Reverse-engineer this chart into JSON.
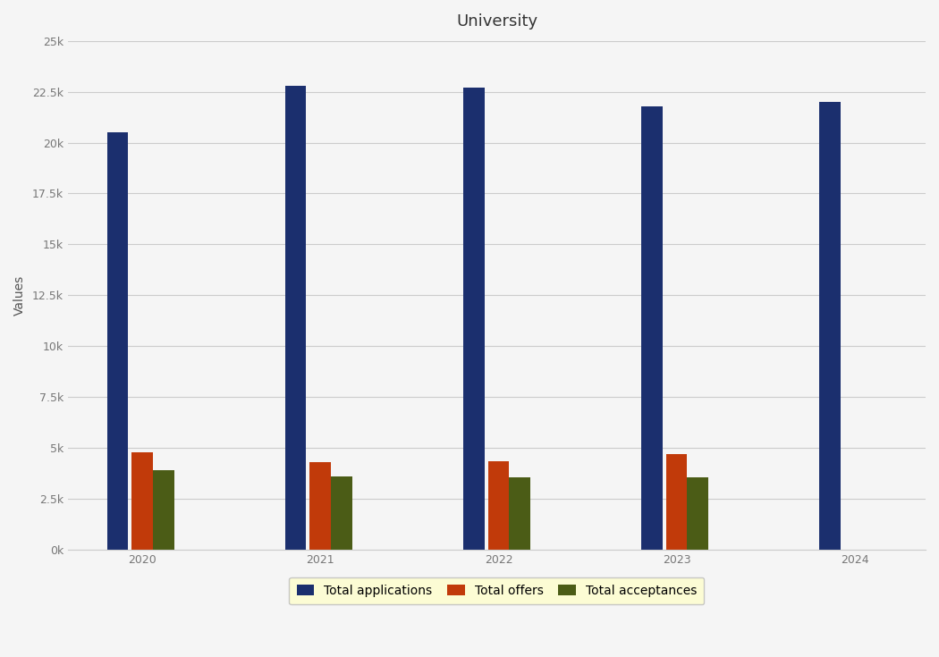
{
  "title": "University",
  "ylabel": "Values",
  "years": [
    "2020",
    "2021",
    "2022",
    "2023",
    "2024"
  ],
  "total_applications": [
    20500,
    22800,
    22700,
    21800,
    22000
  ],
  "total_offers": [
    4800,
    4300,
    4350,
    4700,
    0
  ],
  "total_acceptances": [
    3900,
    3600,
    3550,
    3550,
    0
  ],
  "color_applications": "#1b2f6e",
  "color_offers": "#c13a0a",
  "color_acceptances": "#4b5c16",
  "background_color": "#f5f5f5",
  "ylim": [
    0,
    25000
  ],
  "yticks": [
    0,
    2500,
    5000,
    7500,
    10000,
    12500,
    15000,
    17500,
    20000,
    22500,
    25000
  ],
  "legend_labels": [
    "Total applications",
    "Total offers",
    "Total acceptances"
  ],
  "legend_bg": "#ffffcc",
  "bar_width": 0.12,
  "bar_gap": 0.02,
  "title_fontsize": 13,
  "axis_fontsize": 10,
  "tick_fontsize": 9,
  "legend_fontsize": 10
}
